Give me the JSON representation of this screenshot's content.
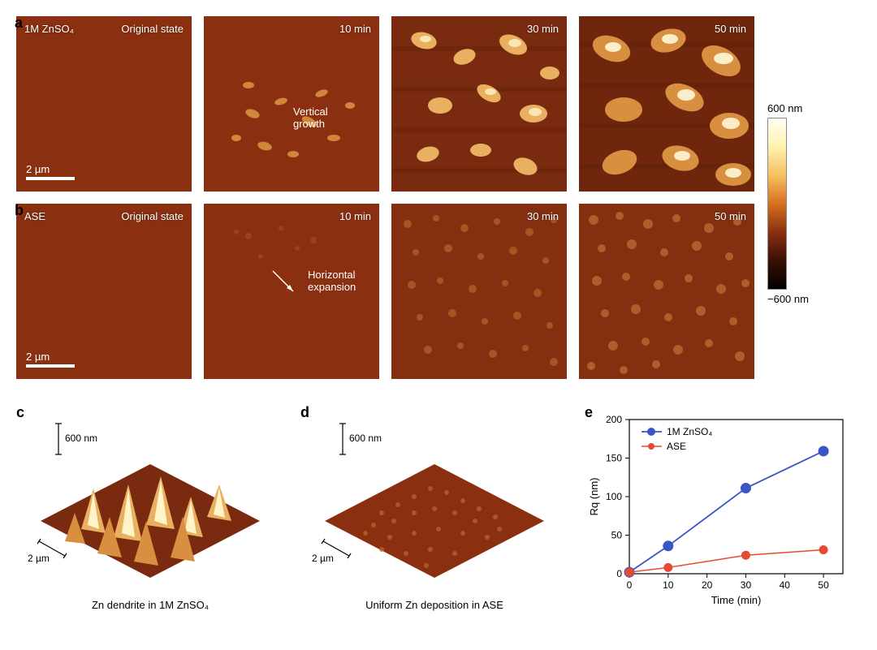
{
  "panel_labels": {
    "a": "a",
    "b": "b",
    "c": "c",
    "d": "d",
    "e": "e"
  },
  "row_a": {
    "sample": "1M ZnSO₄",
    "state_label": "Original state",
    "times": [
      "10 min",
      "30 min",
      "50 min"
    ],
    "annotation": "Vertical\ngrowth",
    "scalebar": "2 µm",
    "base_color": "#8a3010",
    "highlight_color": "#f9d782",
    "bright_color": "#fffce0"
  },
  "row_b": {
    "sample": "ASE",
    "state_label": "Original state",
    "times": [
      "10 min",
      "30 min",
      "50 min"
    ],
    "annotation": "Horizontal\nexpansion",
    "scalebar": "2 µm",
    "base_color": "#8a3010",
    "highlight_color": "#c96830"
  },
  "colorbar": {
    "max_label": "600 nm",
    "min_label": "−600 nm",
    "stops": [
      "#fffef0",
      "#fff2b0",
      "#f5c060",
      "#d87020",
      "#8a3010",
      "#3a1006",
      "#000000"
    ]
  },
  "panel_c": {
    "caption": "Zn dendrite in 1M ZnSO₄",
    "z_scale": "600 nm",
    "xy_scale": "2 µm"
  },
  "panel_d": {
    "caption": "Uniform Zn deposition in ASE",
    "z_scale": "600 nm",
    "xy_scale": "2 µm"
  },
  "chart_e": {
    "type": "line-scatter",
    "xlabel": "Time (min)",
    "ylabel": "Rq (nm)",
    "xlim": [
      0,
      55
    ],
    "ylim": [
      0,
      200
    ],
    "xticks": [
      0,
      10,
      20,
      30,
      40,
      50
    ],
    "yticks": [
      0,
      50,
      100,
      150,
      200
    ],
    "tick_fontsize": 12,
    "label_fontsize": 13,
    "legend_fontsize": 12,
    "axis_color": "#000000",
    "background_color": "#ffffff",
    "series": [
      {
        "name": "1M ZnSO₄",
        "color": "#3a56c5",
        "marker": "circle",
        "marker_size": 6,
        "line_width": 1.8,
        "x": [
          0,
          10,
          30,
          50
        ],
        "y": [
          2,
          36,
          111,
          159
        ]
      },
      {
        "name": "ASE",
        "color": "#e74a33",
        "marker": "circle",
        "marker_size": 5,
        "line_width": 1.5,
        "x": [
          0,
          10,
          30,
          50
        ],
        "y": [
          2,
          8,
          24,
          31
        ]
      }
    ]
  }
}
